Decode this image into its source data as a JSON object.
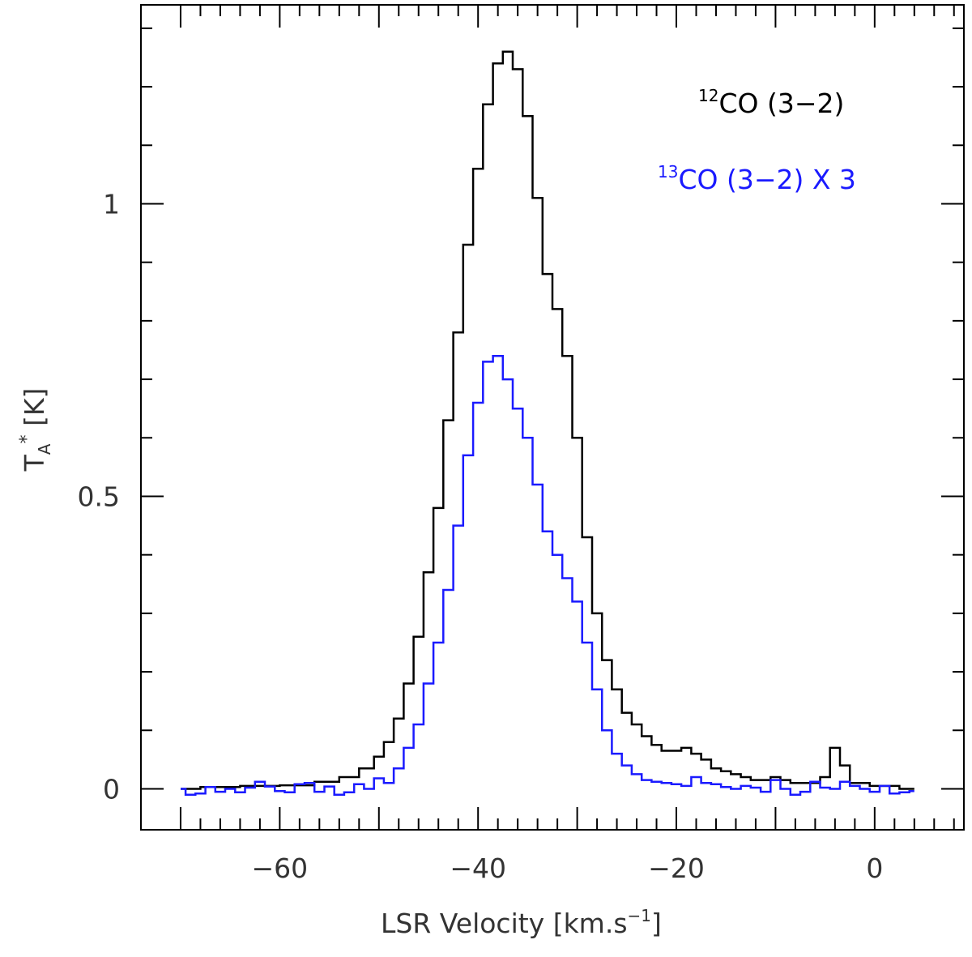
{
  "chart_data": {
    "type": "line",
    "title": "",
    "xlabel": {
      "main": "LSR Velocity [km.s",
      "sup": "−1",
      "close": "]"
    },
    "ylabel": {
      "main": "T",
      "sub": "A",
      "sup": "*",
      "rest": " [K]"
    },
    "xlim": [
      -74,
      9
    ],
    "ylim": [
      -0.07,
      1.34
    ],
    "xticks": [
      -60,
      -40,
      -20,
      0
    ],
    "xtick_labels": [
      "−60",
      "−40",
      "−20",
      "0"
    ],
    "yticks": [
      0,
      0.5,
      1
    ],
    "ytick_labels": [
      "0",
      "0.5",
      "1"
    ],
    "grid": false,
    "legend_position": "top-right",
    "series": [
      {
        "name": "12CO (3-2)",
        "label_sup": "12",
        "label_text": "CO (3−2)",
        "color": "#000000",
        "step": true,
        "x": [
          -70,
          -66,
          -62,
          -58,
          -55,
          -53,
          -51,
          -50,
          -49,
          -48,
          -47,
          -46,
          -45,
          -44,
          -43,
          -42,
          -41,
          -40,
          -39,
          -38,
          -37,
          -36,
          -35,
          -34,
          -33,
          -32,
          -31,
          -30,
          -29,
          -28,
          -27,
          -26,
          -25,
          -24,
          -23,
          -22,
          -21,
          -20,
          -19,
          -18,
          -17,
          -16,
          -15,
          -14,
          -13,
          -12,
          -11,
          -10,
          -9,
          -8,
          -7,
          -6,
          -5,
          -4,
          -3,
          -2,
          -1,
          0,
          1,
          2,
          3,
          4
        ],
        "y": [
          0.0,
          0.003,
          0.005,
          0.006,
          0.012,
          0.02,
          0.035,
          0.055,
          0.08,
          0.12,
          0.18,
          0.26,
          0.37,
          0.48,
          0.63,
          0.78,
          0.93,
          1.06,
          1.17,
          1.24,
          1.26,
          1.23,
          1.15,
          1.01,
          0.88,
          0.82,
          0.74,
          0.6,
          0.43,
          0.3,
          0.22,
          0.17,
          0.13,
          0.11,
          0.09,
          0.075,
          0.065,
          0.065,
          0.07,
          0.06,
          0.05,
          0.035,
          0.03,
          0.025,
          0.02,
          0.015,
          0.015,
          0.02,
          0.015,
          0.01,
          0.01,
          0.01,
          0.02,
          0.07,
          0.04,
          0.01,
          0.01,
          0.005,
          0.005,
          0.005,
          0.0,
          0.0
        ]
      },
      {
        "name": "13CO (3-2) X 3",
        "label_sup": "13",
        "label_text": "CO (3−2) X 3",
        "color": "#1a1aff",
        "step": true,
        "x": [
          -70,
          -69,
          -68,
          -67,
          -66,
          -65,
          -64,
          -63,
          -62,
          -61,
          -60,
          -59,
          -58,
          -57,
          -56,
          -55,
          -54,
          -53,
          -52,
          -51,
          -50,
          -49,
          -48,
          -47,
          -46,
          -45,
          -44,
          -43,
          -42,
          -41,
          -40,
          -39,
          -38,
          -37,
          -36,
          -35,
          -34,
          -33,
          -32,
          -31,
          -30,
          -29,
          -28,
          -27,
          -26,
          -25,
          -24,
          -23,
          -22,
          -21,
          -20,
          -19,
          -18,
          -17,
          -16,
          -15,
          -14,
          -13,
          -12,
          -11,
          -10,
          -9,
          -8,
          -7,
          -6,
          -5,
          -4,
          -3,
          -2,
          -1,
          0,
          1,
          2,
          3,
          4
        ],
        "y": [
          0.0,
          -0.01,
          -0.008,
          0.003,
          -0.005,
          0.0,
          -0.006,
          0.002,
          0.012,
          0.004,
          -0.004,
          -0.006,
          0.008,
          0.01,
          -0.005,
          0.004,
          -0.01,
          -0.006,
          0.008,
          0.0,
          0.018,
          0.01,
          0.035,
          0.07,
          0.11,
          0.18,
          0.25,
          0.34,
          0.45,
          0.57,
          0.66,
          0.73,
          0.74,
          0.7,
          0.65,
          0.6,
          0.52,
          0.44,
          0.4,
          0.36,
          0.32,
          0.25,
          0.17,
          0.1,
          0.06,
          0.04,
          0.025,
          0.015,
          0.012,
          0.01,
          0.008,
          0.005,
          0.02,
          0.01,
          0.008,
          0.003,
          0.0,
          0.005,
          0.002,
          -0.005,
          0.015,
          0.0,
          -0.01,
          -0.005,
          0.012,
          0.002,
          0.0,
          0.012,
          0.005,
          0.0,
          -0.005,
          0.005,
          -0.008,
          -0.006,
          -0.004
        ]
      }
    ]
  }
}
